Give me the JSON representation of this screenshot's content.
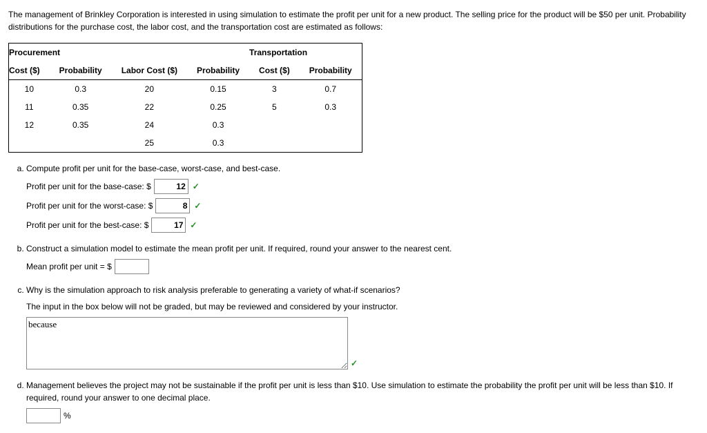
{
  "intro": "The management of Brinkley Corporation is interested in using simulation to estimate the profit per unit for a new product. The selling price for the product will be $50 per unit. Probability distributions for the purchase cost, the labor cost, and the transportation cost are estimated as follows:",
  "table": {
    "group_headers": {
      "c1": "Procurement",
      "c2": "",
      "c3": "Transportation"
    },
    "headers": {
      "h1": "Cost ($)",
      "h2": "Probability",
      "h3": "Labor Cost ($)",
      "h4": "Probability",
      "h5": "Cost ($)",
      "h6": "Probability"
    },
    "rows": [
      {
        "c1": "10",
        "c2": "0.3",
        "c3": "20",
        "c4": "0.15",
        "c5": "3",
        "c6": "0.7"
      },
      {
        "c1": "11",
        "c2": "0.35",
        "c3": "22",
        "c4": "0.25",
        "c5": "5",
        "c6": "0.3"
      },
      {
        "c1": "12",
        "c2": "0.35",
        "c3": "24",
        "c4": "0.3",
        "c5": "",
        "c6": ""
      },
      {
        "c1": "",
        "c2": "",
        "c3": "25",
        "c4": "0.3",
        "c5": "",
        "c6": ""
      }
    ]
  },
  "qa": {
    "prompt": "Compute profit per unit for the base-case, worst-case, and best-case.",
    "base_label": "Profit per unit for the base-case: $",
    "base_value": "12",
    "worst_label": "Profit per unit for the worst-case: $",
    "worst_value": "8",
    "best_label": "Profit per unit for the best-case: $",
    "best_value": "17"
  },
  "qb": {
    "prompt": "Construct a simulation model to estimate the mean profit per unit. If required, round your answer to the nearest cent.",
    "mean_label": "Mean profit per unit = $",
    "mean_value": ""
  },
  "qc": {
    "prompt": "Why is the simulation approach to risk analysis preferable to generating a variety of what-if scenarios?",
    "note": "The input in the box below will not be graded, but may be reviewed and considered by your instructor.",
    "essay_value": "because"
  },
  "qd": {
    "prompt": "Management believes the project may not be sustainable if the profit per unit is less than $10. Use simulation to estimate the probability the profit per unit will be less than $10. If required, round your answer to one decimal place.",
    "value": "",
    "unit": "%"
  },
  "icons": {
    "check": "✓"
  }
}
